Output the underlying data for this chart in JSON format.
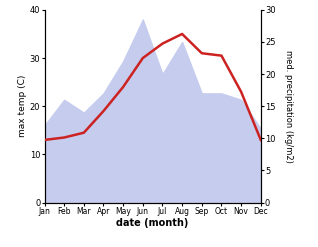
{
  "months": [
    "Jan",
    "Feb",
    "Mar",
    "Apr",
    "May",
    "Jun",
    "Jul",
    "Aug",
    "Sep",
    "Oct",
    "Nov",
    "Dec"
  ],
  "temp": [
    13,
    13.5,
    14.5,
    19,
    24,
    30,
    33,
    35,
    31,
    30.5,
    23,
    13
  ],
  "precip": [
    12,
    16,
    14,
    17,
    22,
    28.5,
    20,
    25,
    17,
    17,
    16,
    11.5
  ],
  "temp_color": "#cc2222",
  "precip_fill_color": "#c5ccee",
  "temp_lw": 1.8,
  "left_ylim": [
    0,
    40
  ],
  "right_ylim": [
    0,
    30
  ],
  "left_yticks": [
    0,
    10,
    20,
    30,
    40
  ],
  "right_yticks": [
    0,
    5,
    10,
    15,
    20,
    25,
    30
  ],
  "left_ylabel": "max temp (C)",
  "right_ylabel": "med. precipitation (kg/m2)",
  "xlabel": "date (month)",
  "bg_color": "#ffffff",
  "figwidth": 3.18,
  "figheight": 2.47,
  "dpi": 100
}
